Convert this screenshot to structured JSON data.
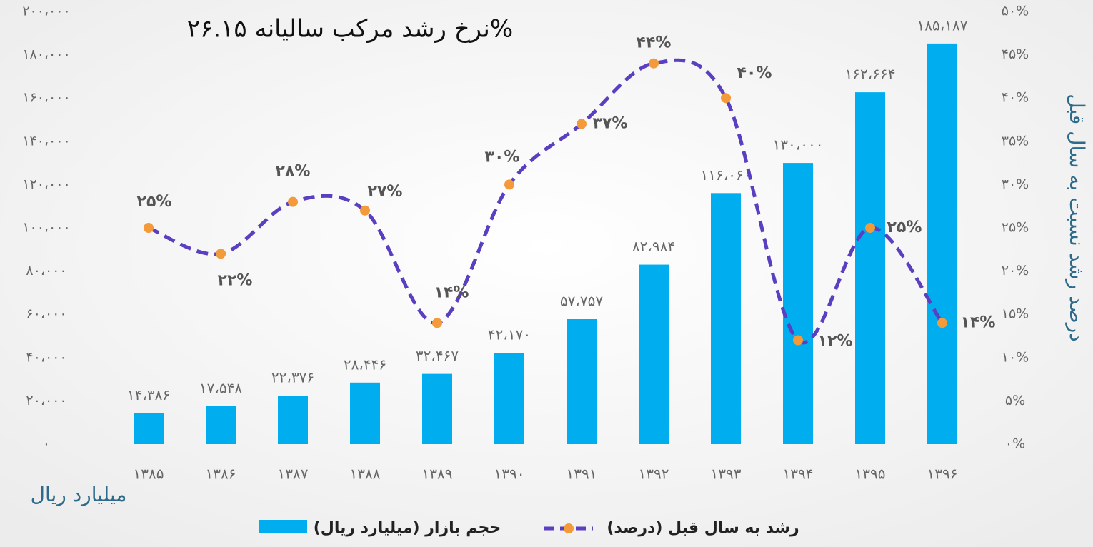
{
  "chart_data": {
    "type": "bar",
    "title": "نرخ رشد مرکب سالیانه ۲۶.۱۵%",
    "ylabel": "میلیارد ریال",
    "y2label": "درصد رشد نسبت به سال قبل",
    "categories": [
      "۱۳۸۵",
      "۱۳۸۶",
      "۱۳۸۷",
      "۱۳۸۸",
      "۱۳۸۹",
      "۱۳۹۰",
      "۱۳۹۱",
      "۱۳۹۲",
      "۱۳۹۳",
      "۱۳۹۴",
      "۱۳۹۵",
      "۱۳۹۶"
    ],
    "series": [
      {
        "name": "حجم بازار (میلیارد ریال)",
        "type": "bar",
        "color": "#00adef",
        "values": [
          14386,
          17548,
          22376,
          28446,
          32467,
          42170,
          57757,
          82984,
          116060,
          130000,
          162664,
          185187
        ],
        "value_labels": [
          "۱۴،۳۸۶",
          "۱۷،۵۴۸",
          "۲۲،۳۷۶",
          "۲۸،۴۴۶",
          "۳۲،۴۶۷",
          "۴۲،۱۷۰",
          "۵۷،۷۵۷",
          "۸۲،۹۸۴",
          "۱۱۶،۰۶۰",
          "۱۳۰،۰۰۰",
          "۱۶۲،۶۶۴",
          "۱۸۵،۱۸۷"
        ]
      },
      {
        "name": "رشد به سال قبل (درصد)",
        "type": "line",
        "axis": "y2",
        "color": "#5a3fc0",
        "marker_color": "#f39a3a",
        "values": [
          25,
          22,
          28,
          27,
          14,
          30,
          37,
          44,
          40,
          12,
          25,
          14
        ],
        "value_labels": [
          "۲۵%",
          "۲۲%",
          "۲۸%",
          "۲۷%",
          "۱۴%",
          "۳۰%",
          "۳۷%",
          "۴۴%",
          "۴۰%",
          "۱۲%",
          "۲۵%",
          "۱۴%"
        ]
      }
    ],
    "ylim": [
      0,
      200000
    ],
    "yticks": [
      {
        "value": 0,
        "label": "۰"
      },
      {
        "value": 20000,
        "label": "۲۰،۰۰۰"
      },
      {
        "value": 40000,
        "label": "۴۰،۰۰۰"
      },
      {
        "value": 60000,
        "label": "۶۰،۰۰۰"
      },
      {
        "value": 80000,
        "label": "۸۰،۰۰۰"
      },
      {
        "value": 100000,
        "label": "۱۰۰،۰۰۰"
      },
      {
        "value": 120000,
        "label": "۱۲۰،۰۰۰"
      },
      {
        "value": 140000,
        "label": "۱۴۰،۰۰۰"
      },
      {
        "value": 160000,
        "label": "۱۶۰،۰۰۰"
      },
      {
        "value": 180000,
        "label": "۱۸۰،۰۰۰"
      },
      {
        "value": 200000,
        "label": "۲۰۰،۰۰۰"
      }
    ],
    "y2lim": [
      0,
      50
    ],
    "y2ticks": [
      {
        "value": 0,
        "label": "۰%"
      },
      {
        "value": 5,
        "label": "۵%"
      },
      {
        "value": 10,
        "label": "۱۰%"
      },
      {
        "value": 15,
        "label": "۱۵%"
      },
      {
        "value": 20,
        "label": "۲۰%"
      },
      {
        "value": 25,
        "label": "۲۵%"
      },
      {
        "value": 30,
        "label": "۳۰%"
      },
      {
        "value": 35,
        "label": "۳۵%"
      },
      {
        "value": 40,
        "label": "۴۰%"
      },
      {
        "value": 45,
        "label": "۴۵%"
      },
      {
        "value": 50,
        "label": "۵۰%"
      }
    ],
    "grid": false
  }
}
